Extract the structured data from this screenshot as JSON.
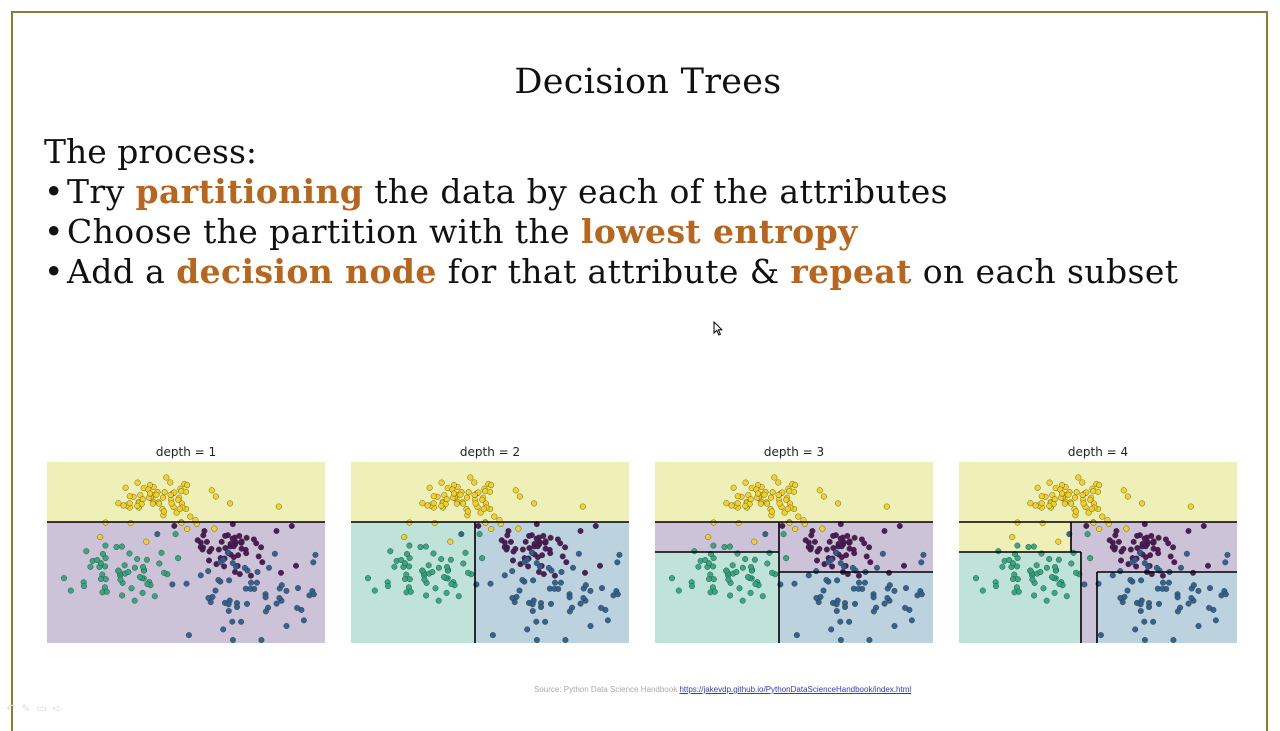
{
  "slide": {
    "title": "Decision Trees",
    "process_label": "The process:",
    "bullets": [
      {
        "pre": "Try ",
        "highlight": "partitioning",
        "post": " the data by each of the attributes"
      },
      {
        "pre": "Choose the partition with the ",
        "highlight": "lowest entropy",
        "post": ""
      },
      {
        "pre": "Add a ",
        "highlight": "decision node",
        "mid": " for that attribute & ",
        "highlight2": "repeat",
        "post": " on each subset"
      }
    ],
    "bullet_char": "•",
    "highlight_color": "#b8651e"
  },
  "plots": [
    {
      "title": "depth = 1"
    },
    {
      "title": "depth = 2"
    },
    {
      "title": "depth = 3"
    },
    {
      "title": "depth = 4"
    }
  ],
  "source": {
    "prefix": "Source: Python Data Science  Handbook",
    "link": "https://jakevdp.github.io/PythonDataScienceHandbook/index.html"
  },
  "colors": {
    "yellow_region": "#eef0b8",
    "purple_region": "#cdc3d9",
    "teal_region": "#bfe3d8",
    "blue_region": "#bcd2de",
    "yellow_point": "#f7d21b",
    "purple_point": "#4a1452",
    "teal_point": "#2ea67c",
    "blue_point": "#2d5e8c"
  },
  "icons": {
    "cursor": "mouse-pointer-icon"
  }
}
